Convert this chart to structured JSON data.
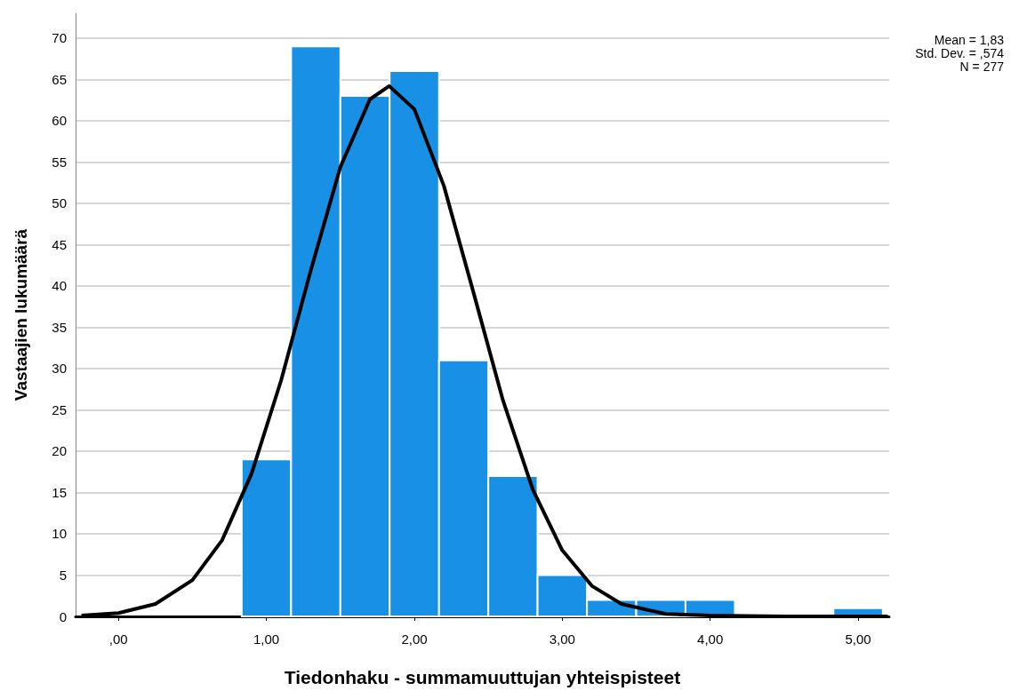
{
  "chart_data": {
    "type": "histogram",
    "xlabel": "Tiedonhaku - summamuuttujan yhteispisteet",
    "ylabel": "Vastaajien lukumäärä",
    "annotations": [
      "Mean = 1,83",
      "Std. Dev. = ,574",
      "N = 277"
    ],
    "xlim": [
      -0.29,
      5.21
    ],
    "xticks": [
      {
        "value": 0,
        "label": ",00"
      },
      {
        "value": 1,
        "label": "1,00"
      },
      {
        "value": 2,
        "label": "2,00"
      },
      {
        "value": 3,
        "label": "3,00"
      },
      {
        "value": 4,
        "label": "4,00"
      },
      {
        "value": 5,
        "label": "5,00"
      }
    ],
    "ylim": [
      0,
      73
    ],
    "yticks": [
      0,
      5,
      10,
      15,
      20,
      25,
      30,
      35,
      40,
      45,
      50,
      55,
      60,
      65,
      70
    ],
    "grid": "y",
    "series": [
      {
        "color": "#1790e6",
        "bins": [
          0.833,
          1.167,
          1.5,
          1.833,
          2.167,
          2.5,
          2.833,
          3.167,
          3.5,
          3.833,
          4.167,
          4.5,
          4.833,
          5.167
        ],
        "values": [
          19,
          69,
          63,
          66,
          31,
          17,
          5,
          2,
          2,
          2,
          0,
          0,
          1
        ]
      },
      {
        "type": "line",
        "color": "#000000",
        "marker": "none",
        "x": [
          -0.25,
          0,
          0.25,
          0.5,
          0.7,
          0.9,
          1.1,
          1.3,
          1.5,
          1.7,
          1.83,
          2,
          2.2,
          2.4,
          2.6,
          2.8,
          3,
          3.2,
          3.4,
          3.7,
          4,
          4.5,
          5.2
        ],
        "values": [
          0.1,
          0.4,
          1.5,
          4.4,
          9.2,
          17.3,
          28.6,
          41.9,
          54.4,
          62.6,
          64.2,
          61.4,
          52.1,
          39.2,
          26.1,
          15.4,
          8,
          3.7,
          1.5,
          0.3,
          0.1,
          0,
          0
        ]
      }
    ]
  }
}
